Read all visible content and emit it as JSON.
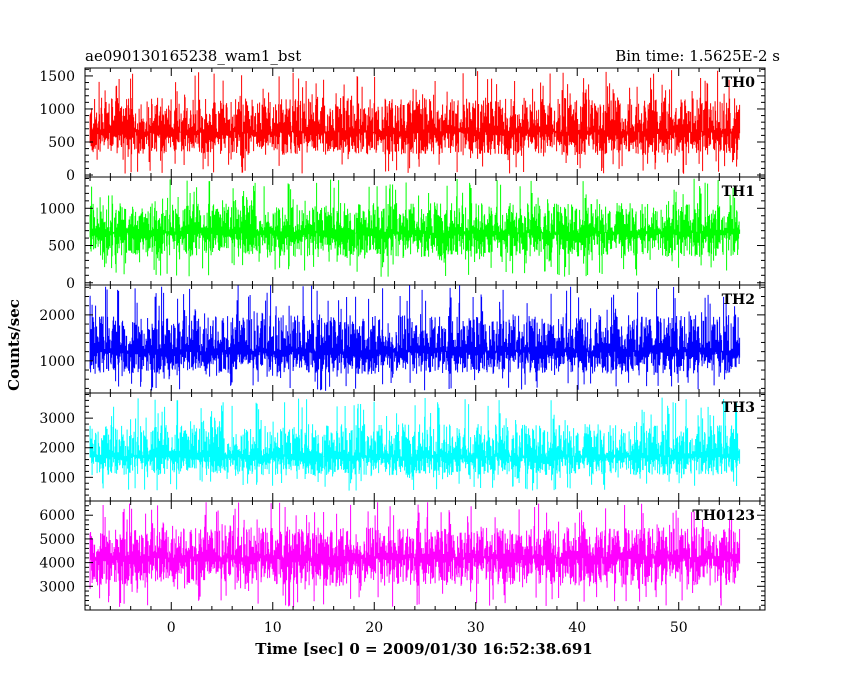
{
  "header": {
    "title": "ae090130165238_wam1_bst",
    "bin_time": "Bin time: 1.5625E-2 s"
  },
  "chart_data": {
    "type": "line",
    "title": "ae090130165238_wam1_bst",
    "subtitle": "Bin time: 1.5625E-2 s",
    "xlabel": "Time [sec] 0 = 2009/01/30 16:52:38.691",
    "ylabel": "Counts/sec",
    "xlim": [
      -8.5,
      58.5
    ],
    "x_range": [
      -8.0,
      56.0
    ],
    "x_ticks": [
      0,
      10,
      20,
      30,
      40,
      50
    ],
    "bin_time_s": 0.015625,
    "panels": [
      {
        "name": "TH0",
        "color": "#ff0000",
        "ylim": [
          -30,
          1620
        ],
        "y_ticks": [
          0,
          500,
          1000,
          1500
        ],
        "approx_mean": 650,
        "approx_min": 20,
        "approx_max": 1600
      },
      {
        "name": "TH1",
        "color": "#00ff00",
        "ylim": [
          -30,
          1420
        ],
        "y_ticks": [
          0,
          500,
          1000
        ],
        "approx_mean": 670,
        "approx_min": 80,
        "approx_max": 1400
      },
      {
        "name": "TH2",
        "color": "#0000ff",
        "ylim": [
          300,
          2650
        ],
        "y_ticks": [
          1000,
          2000
        ],
        "approx_mean": 1200,
        "approx_min": 320,
        "approx_max": 2650
      },
      {
        "name": "TH3",
        "color": "#00ffff",
        "ylim": [
          200,
          3850
        ],
        "y_ticks": [
          1000,
          2000,
          3000
        ],
        "approx_mean": 1700,
        "approx_min": 550,
        "approx_max": 3700
      },
      {
        "name": "TH0123",
        "color": "#ff00ff",
        "ylim": [
          2000,
          6600
        ],
        "y_ticks": [
          3000,
          4000,
          5000,
          6000
        ],
        "approx_mean": 4200,
        "approx_min": 2050,
        "approx_max": 6550
      }
    ]
  }
}
